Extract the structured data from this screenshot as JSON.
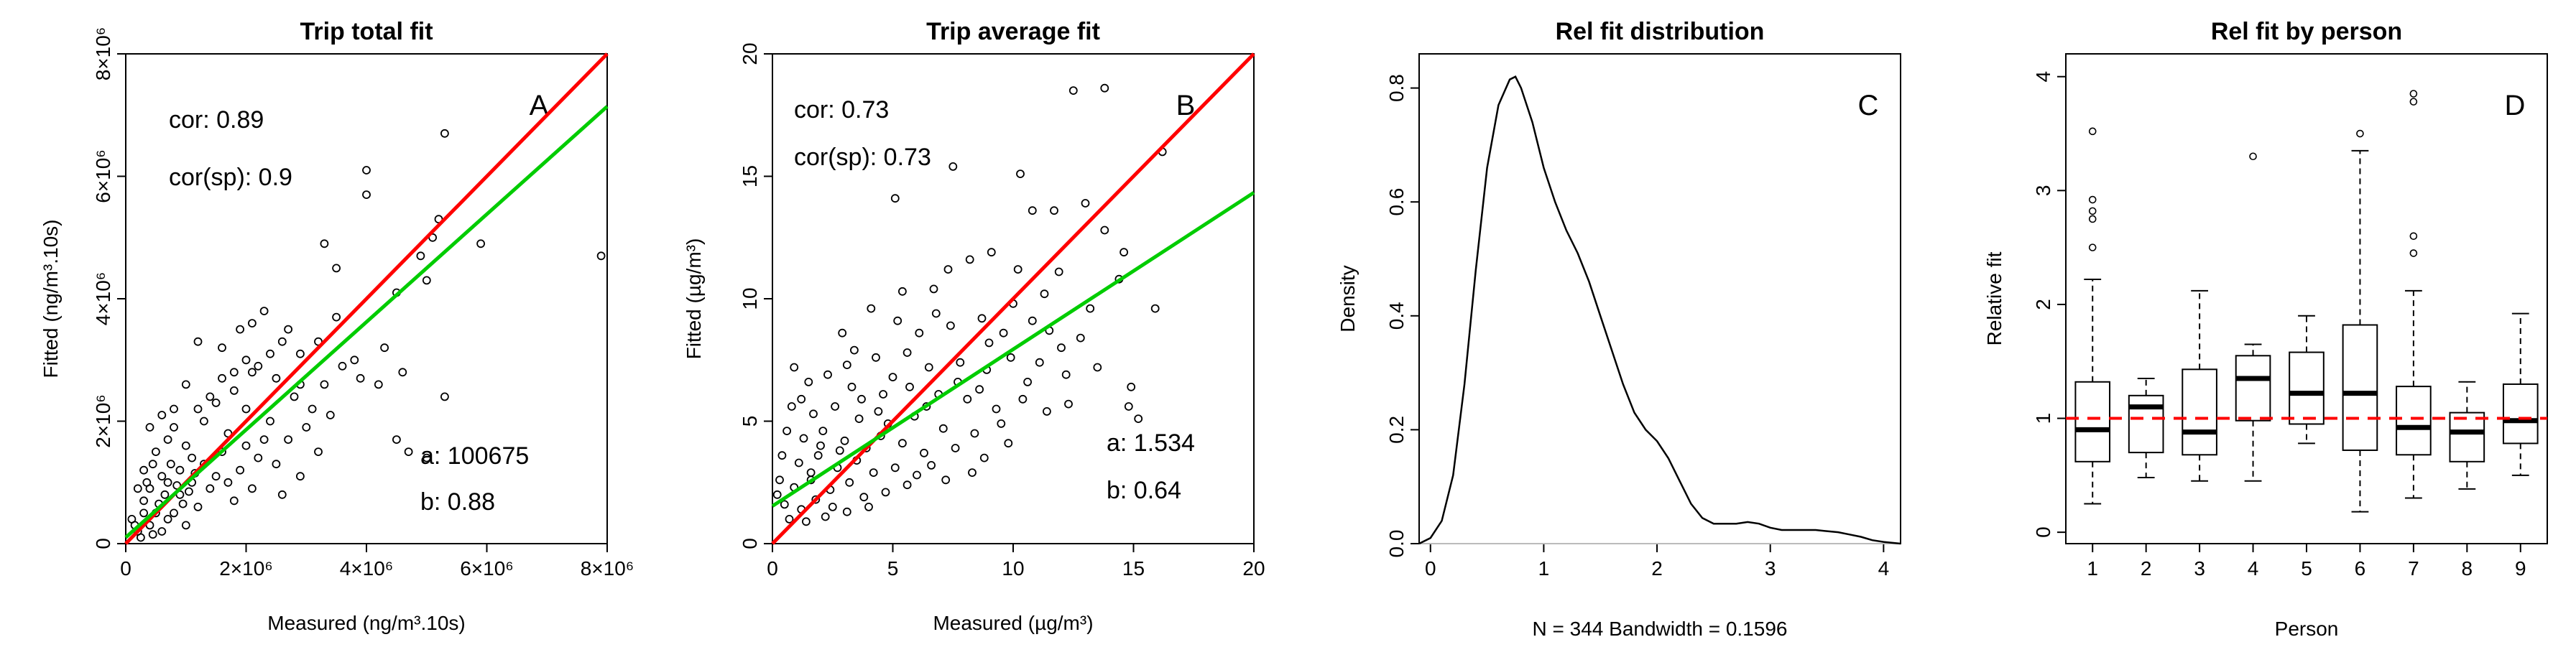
{
  "figure": {
    "colors": {
      "identity": "#ff0000",
      "regression": "#00cc00",
      "ref": "#ff0000",
      "baseline": "#bbbbbb"
    }
  },
  "chart_data": [
    {
      "type": "scatter",
      "panel_letter": "A",
      "title": "Trip total fit",
      "xlabel": "Measured (ng/m³.10s)",
      "ylabel": "Fitted (ng/m³.10s)",
      "xlim": [
        0,
        8000000
      ],
      "ylim": [
        0,
        8000000
      ],
      "xticks": [
        0,
        2000000,
        4000000,
        6000000,
        8000000
      ],
      "xtick_labels": [
        "0",
        "2×10⁶",
        "4×10⁶",
        "6×10⁶",
        "8×10⁶"
      ],
      "yticks": [
        0,
        2000000,
        4000000,
        6000000,
        8000000
      ],
      "ytick_labels": [
        "0",
        "2×10⁶",
        "4×10⁶",
        "6×10⁶",
        "8×10⁶"
      ],
      "annotations": {
        "cor": "cor: 0.89",
        "corsp": "cor(sp): 0.9",
        "a": "a: 100675",
        "b": "b: 0.88"
      },
      "lines": {
        "identity": [
          [
            0,
            0
          ],
          [
            8000000,
            8000000
          ]
        ],
        "fit": [
          [
            0,
            100675
          ],
          [
            8000000,
            7140675
          ]
        ]
      },
      "points": [
        [
          5300000,
          6700000
        ],
        [
          4000000,
          6100000
        ],
        [
          4000000,
          5700000
        ],
        [
          7900000,
          4700000
        ],
        [
          5200000,
          5300000
        ],
        [
          5100000,
          5000000
        ],
        [
          5900000,
          4900000
        ],
        [
          3300000,
          4900000
        ],
        [
          3500000,
          4500000
        ],
        [
          4900000,
          4700000
        ],
        [
          5000000,
          4300000
        ],
        [
          4500000,
          4100000
        ],
        [
          3500000,
          3700000
        ],
        [
          4300000,
          3200000
        ],
        [
          3800000,
          3000000
        ],
        [
          5300000,
          2400000
        ],
        [
          4600000,
          2800000
        ],
        [
          3200000,
          3300000
        ],
        [
          2900000,
          3100000
        ],
        [
          2600000,
          3300000
        ],
        [
          2100000,
          3600000
        ],
        [
          2300000,
          3800000
        ],
        [
          1900000,
          3500000
        ],
        [
          1600000,
          3200000
        ],
        [
          1200000,
          3300000
        ],
        [
          2500000,
          2700000
        ],
        [
          2800000,
          2400000
        ],
        [
          3100000,
          2200000
        ],
        [
          3300000,
          2600000
        ],
        [
          2200000,
          2900000
        ],
        [
          600000,
          2100000
        ],
        [
          400000,
          1900000
        ],
        [
          800000,
          2200000
        ],
        [
          4500000,
          1700000
        ],
        [
          4700000,
          1500000
        ],
        [
          5000000,
          1400000
        ],
        [
          1500000,
          2300000
        ],
        [
          1800000,
          2500000
        ],
        [
          2000000,
          2200000
        ],
        [
          1000000,
          2600000
        ],
        [
          1300000,
          2000000
        ],
        [
          1700000,
          1800000
        ],
        [
          2400000,
          2000000
        ],
        [
          2700000,
          1700000
        ],
        [
          3000000,
          1900000
        ],
        [
          3200000,
          1500000
        ],
        [
          2200000,
          1400000
        ],
        [
          1900000,
          1200000
        ],
        [
          1100000,
          1400000
        ],
        [
          1400000,
          900000
        ],
        [
          1800000,
          700000
        ],
        [
          2100000,
          900000
        ],
        [
          2600000,
          800000
        ],
        [
          2900000,
          1100000
        ],
        [
          600000,
          1100000
        ],
        [
          900000,
          800000
        ],
        [
          300000,
          700000
        ],
        [
          500000,
          500000
        ],
        [
          700000,
          400000
        ],
        [
          1000000,
          300000
        ],
        [
          1200000,
          600000
        ],
        [
          200000,
          200000
        ],
        [
          400000,
          300000
        ],
        [
          600000,
          200000
        ],
        [
          800000,
          500000
        ],
        [
          100000,
          400000
        ],
        [
          200000,
          900000
        ],
        [
          300000,
          1200000
        ],
        [
          500000,
          1500000
        ],
        [
          700000,
          1700000
        ],
        [
          900000,
          1200000
        ],
        [
          1100000,
          1000000
        ],
        [
          1300000,
          1300000
        ],
        [
          1500000,
          1100000
        ],
        [
          1600000,
          1500000
        ],
        [
          2000000,
          1600000
        ],
        [
          2300000,
          1700000
        ],
        [
          2500000,
          1300000
        ],
        [
          1700000,
          1000000
        ],
        [
          1000000,
          1600000
        ],
        [
          800000,
          1900000
        ],
        [
          1200000,
          2200000
        ],
        [
          1400000,
          2400000
        ],
        [
          1600000,
          2700000
        ],
        [
          2100000,
          2800000
        ],
        [
          2400000,
          3100000
        ],
        [
          2000000,
          3000000
        ],
        [
          1800000,
          2800000
        ],
        [
          700000,
          1000000
        ],
        [
          400000,
          900000
        ],
        [
          300000,
          500000
        ],
        [
          150000,
          300000
        ],
        [
          250000,
          100000
        ],
        [
          450000,
          150000
        ],
        [
          550000,
          650000
        ],
        [
          650000,
          800000
        ],
        [
          850000,
          950000
        ],
        [
          950000,
          650000
        ],
        [
          1050000,
          850000
        ],
        [
          1150000,
          1150000
        ],
        [
          350000,
          1000000
        ],
        [
          450000,
          1300000
        ],
        [
          750000,
          1300000
        ],
        [
          3600000,
          2900000
        ],
        [
          3900000,
          2700000
        ],
        [
          4200000,
          2600000
        ],
        [
          2700000,
          3500000
        ],
        [
          2900000,
          2600000
        ],
        [
          3400000,
          2100000
        ]
      ]
    },
    {
      "type": "scatter",
      "panel_letter": "B",
      "title": "Trip average fit",
      "xlabel": "Measured (µg/m³)",
      "ylabel": "Fitted (µg/m³)",
      "xlim": [
        0,
        20
      ],
      "ylim": [
        0,
        20
      ],
      "xticks": [
        0,
        5,
        10,
        15,
        20
      ],
      "xtick_labels": [
        "0",
        "5",
        "10",
        "15",
        "20"
      ],
      "yticks": [
        0,
        5,
        10,
        15,
        20
      ],
      "ytick_labels": [
        "0",
        "5",
        "10",
        "15",
        "20"
      ],
      "annotations": {
        "cor": "cor: 0.73",
        "corsp": "cor(sp): 0.73",
        "a": "a: 1.534",
        "b": "b: 0.64"
      },
      "lines": {
        "identity": [
          [
            0,
            0
          ],
          [
            20,
            20
          ]
        ],
        "fit": [
          [
            0,
            1.534
          ],
          [
            20,
            14.334
          ]
        ]
      },
      "points": [
        [
          12.5,
          18.5
        ],
        [
          13.8,
          18.6
        ],
        [
          7.5,
          15.4
        ],
        [
          16.2,
          16
        ],
        [
          10.3,
          15.1
        ],
        [
          10.8,
          13.6
        ],
        [
          11.7,
          13.6
        ],
        [
          13,
          13.9
        ],
        [
          13.8,
          12.8
        ],
        [
          5.1,
          14.1
        ],
        [
          11.9,
          11.1
        ],
        [
          14.6,
          11.9
        ],
        [
          15.9,
          9.6
        ],
        [
          14.4,
          10.8
        ],
        [
          14.9,
          6.4
        ],
        [
          14.8,
          5.6
        ],
        [
          15.2,
          5.1
        ],
        [
          5.4,
          10.3
        ],
        [
          6.7,
          10.4
        ],
        [
          7.3,
          11.2
        ],
        [
          8.2,
          11.6
        ],
        [
          9.1,
          11.9
        ],
        [
          10.2,
          11.2
        ],
        [
          4.1,
          9.6
        ],
        [
          5.2,
          9.1
        ],
        [
          6.1,
          8.6
        ],
        [
          7.4,
          8.9
        ],
        [
          8.7,
          9.2
        ],
        [
          9.6,
          8.6
        ],
        [
          10.8,
          9.1
        ],
        [
          11.5,
          8.7
        ],
        [
          12.8,
          8.4
        ],
        [
          13.2,
          9.6
        ],
        [
          2.9,
          8.6
        ],
        [
          3.4,
          7.9
        ],
        [
          4.3,
          7.6
        ],
        [
          5.6,
          7.8
        ],
        [
          6.5,
          7.2
        ],
        [
          7.8,
          7.4
        ],
        [
          8.9,
          7.1
        ],
        [
          9.9,
          7.6
        ],
        [
          11.1,
          7.4
        ],
        [
          12.2,
          6.9
        ],
        [
          13.5,
          7.2
        ],
        [
          1.5,
          6.6
        ],
        [
          2.3,
          6.9
        ],
        [
          3.3,
          6.4
        ],
        [
          4.6,
          6.1
        ],
        [
          5.7,
          6.4
        ],
        [
          6.9,
          6.1
        ],
        [
          8.1,
          5.9
        ],
        [
          9.3,
          5.5
        ],
        [
          10.4,
          5.9
        ],
        [
          11.4,
          5.4
        ],
        [
          12.3,
          5.7
        ],
        [
          0.8,
          5.6
        ],
        [
          1.7,
          5.3
        ],
        [
          2.6,
          5.6
        ],
        [
          3.6,
          5.1
        ],
        [
          4.8,
          4.9
        ],
        [
          5.9,
          5.2
        ],
        [
          7.1,
          4.7
        ],
        [
          8.4,
          4.5
        ],
        [
          9.5,
          4.9
        ],
        [
          0.6,
          4.6
        ],
        [
          1.3,
          4.3
        ],
        [
          2.1,
          4.6
        ],
        [
          3,
          4.2
        ],
        [
          3.9,
          3.9
        ],
        [
          4.5,
          4.4
        ],
        [
          5.4,
          4.1
        ],
        [
          6.3,
          3.7
        ],
        [
          7.6,
          3.9
        ],
        [
          8.8,
          3.5
        ],
        [
          0.4,
          3.6
        ],
        [
          1.1,
          3.3
        ],
        [
          1.9,
          3.6
        ],
        [
          2.7,
          3.1
        ],
        [
          3.5,
          3.4
        ],
        [
          4.2,
          2.9
        ],
        [
          5.1,
          3.1
        ],
        [
          6,
          2.8
        ],
        [
          7.2,
          2.6
        ],
        [
          0.3,
          2.6
        ],
        [
          0.9,
          2.3
        ],
        [
          1.6,
          2.6
        ],
        [
          2.4,
          2.2
        ],
        [
          3.2,
          2.5
        ],
        [
          3.8,
          1.9
        ],
        [
          4.7,
          2.1
        ],
        [
          5.6,
          2.4
        ],
        [
          0.5,
          1.6
        ],
        [
          1.2,
          1.4
        ],
        [
          1.8,
          1.8
        ],
        [
          2.5,
          1.5
        ],
        [
          3.1,
          1.3
        ],
        [
          4,
          1.5
        ],
        [
          0.7,
          1
        ],
        [
          1.4,
          0.9
        ],
        [
          2.2,
          1.1
        ],
        [
          0.2,
          2
        ],
        [
          6.4,
          5.6
        ],
        [
          7.7,
          6.6
        ],
        [
          8.6,
          6.3
        ],
        [
          9,
          8.2
        ],
        [
          10,
          9.8
        ],
        [
          11.3,
          10.2
        ],
        [
          6.8,
          9.4
        ],
        [
          5,
          6.8
        ],
        [
          4.4,
          5.4
        ],
        [
          3.7,
          5.9
        ],
        [
          2,
          4
        ],
        [
          1.6,
          2.9
        ],
        [
          2.8,
          3.8
        ],
        [
          6.6,
          3.2
        ],
        [
          8.3,
          2.9
        ],
        [
          9.8,
          4.1
        ],
        [
          10.6,
          6.6
        ],
        [
          12,
          8
        ],
        [
          0.9,
          7.2
        ],
        [
          1.2,
          5.9
        ],
        [
          3.1,
          7.3
        ]
      ]
    },
    {
      "type": "line",
      "panel_letter": "C",
      "title": "Rel fit distribution",
      "xlabel": "N = 344   Bandwidth = 0.1596",
      "ylabel": "Density",
      "xlim": [
        -0.1,
        4.15
      ],
      "ylim": [
        0,
        0.86
      ],
      "xticks": [
        0,
        1,
        2,
        3,
        4
      ],
      "xtick_labels": [
        "0",
        "1",
        "2",
        "3",
        "4"
      ],
      "yticks": [
        0,
        0.2,
        0.4,
        0.6,
        0.8
      ],
      "ytick_labels": [
        "0.0",
        "0.2",
        "0.4",
        "0.6",
        "0.8"
      ],
      "series": [
        {
          "name": "density",
          "x": [
            -0.1,
            0,
            0.1,
            0.2,
            0.3,
            0.4,
            0.5,
            0.6,
            0.7,
            0.75,
            0.8,
            0.9,
            1,
            1.1,
            1.2,
            1.3,
            1.4,
            1.5,
            1.6,
            1.7,
            1.8,
            1.9,
            2,
            2.1,
            2.2,
            2.3,
            2.4,
            2.5,
            2.6,
            2.7,
            2.8,
            2.9,
            3,
            3.1,
            3.2,
            3.3,
            3.4,
            3.5,
            3.6,
            3.7,
            3.8,
            3.9,
            4,
            4.15
          ],
          "values": [
            0,
            0.01,
            0.04,
            0.12,
            0.28,
            0.48,
            0.66,
            0.77,
            0.815,
            0.82,
            0.8,
            0.74,
            0.66,
            0.6,
            0.55,
            0.51,
            0.46,
            0.4,
            0.34,
            0.28,
            0.23,
            0.2,
            0.18,
            0.15,
            0.11,
            0.07,
            0.045,
            0.035,
            0.035,
            0.035,
            0.038,
            0.035,
            0.028,
            0.024,
            0.024,
            0.024,
            0.024,
            0.022,
            0.02,
            0.016,
            0.012,
            0.006,
            0.003,
            0
          ]
        }
      ]
    },
    {
      "type": "box",
      "panel_letter": "D",
      "title": "Rel fit by person",
      "xlabel": "Person",
      "ylabel": "Relative fit",
      "xlim": [
        0.5,
        9.5
      ],
      "ylim": [
        -0.1,
        4.2
      ],
      "yticks": [
        0,
        1,
        2,
        3,
        4
      ],
      "ytick_labels": [
        "0",
        "1",
        "2",
        "3",
        "4"
      ],
      "reference_value": 1,
      "categories": [
        "1",
        "2",
        "3",
        "4",
        "5",
        "6",
        "7",
        "8",
        "9"
      ],
      "boxes": [
        {
          "min": 0.25,
          "q1": 0.62,
          "median": 0.9,
          "q3": 1.32,
          "max": 2.22,
          "outliers": [
            2.5,
            2.75,
            2.82,
            2.92,
            3.52
          ]
        },
        {
          "min": 0.48,
          "q1": 0.7,
          "median": 1.1,
          "q3": 1.2,
          "max": 1.35,
          "outliers": []
        },
        {
          "min": 0.45,
          "q1": 0.68,
          "median": 0.88,
          "q3": 1.43,
          "max": 2.12,
          "outliers": []
        },
        {
          "min": 0.45,
          "q1": 0.98,
          "median": 1.35,
          "q3": 1.55,
          "max": 1.65,
          "outliers": [
            3.3
          ]
        },
        {
          "min": 0.78,
          "q1": 0.95,
          "median": 1.22,
          "q3": 1.58,
          "max": 1.9,
          "outliers": []
        },
        {
          "min": 0.18,
          "q1": 0.72,
          "median": 1.22,
          "q3": 1.82,
          "max": 3.35,
          "outliers": [
            3.5
          ]
        },
        {
          "min": 0.3,
          "q1": 0.68,
          "median": 0.92,
          "q3": 1.28,
          "max": 2.12,
          "outliers": [
            2.45,
            2.6,
            3.78,
            3.85
          ]
        },
        {
          "min": 0.38,
          "q1": 0.62,
          "median": 0.88,
          "q3": 1.05,
          "max": 1.32,
          "outliers": []
        },
        {
          "min": 0.5,
          "q1": 0.78,
          "median": 0.98,
          "q3": 1.3,
          "max": 1.92,
          "outliers": []
        }
      ]
    }
  ]
}
